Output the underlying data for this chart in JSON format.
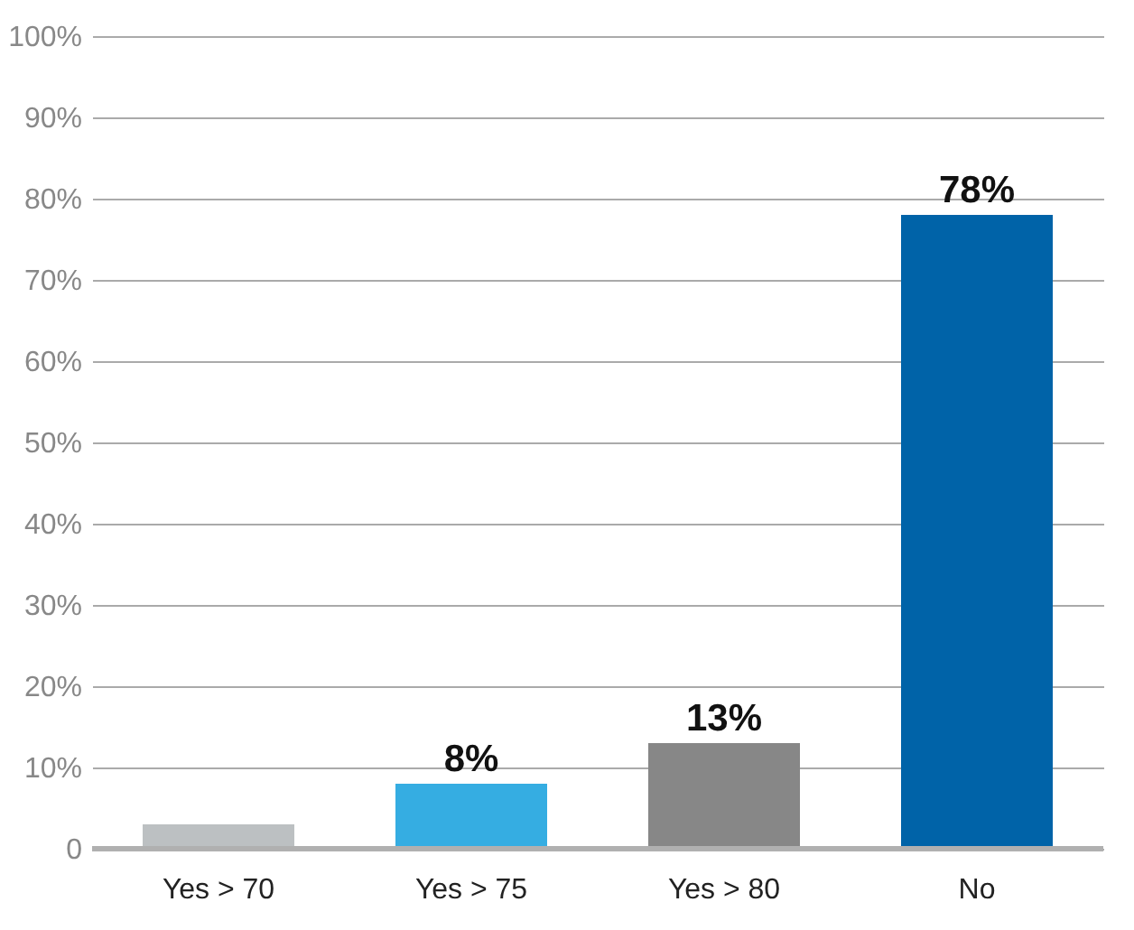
{
  "chart_data": {
    "type": "bar",
    "categories": [
      "Yes > 70",
      "Yes > 75",
      "Yes > 80",
      "No"
    ],
    "values": [
      3,
      8,
      13,
      78
    ],
    "colors": [
      "#bcc0c2",
      "#35ade2",
      "#878787",
      "#0063a8"
    ],
    "value_labels": [
      null,
      "8%",
      "13%",
      "78%"
    ],
    "ylim": [
      0,
      100
    ],
    "yticks": [
      0,
      {
        "value": 10,
        "label": "10%"
      },
      {
        "value": 20,
        "label": "20%"
      },
      {
        "value": 30,
        "label": "30%"
      },
      {
        "value": 40,
        "label": "40%"
      },
      {
        "value": 50,
        "label": "50%"
      },
      {
        "value": 60,
        "label": "60%"
      },
      {
        "value": 70,
        "label": "70%"
      },
      {
        "value": 80,
        "label": "80%"
      },
      {
        "value": 90,
        "label": "90%"
      },
      {
        "value": 100,
        "label": "100%"
      }
    ],
    "grid": "y"
  }
}
